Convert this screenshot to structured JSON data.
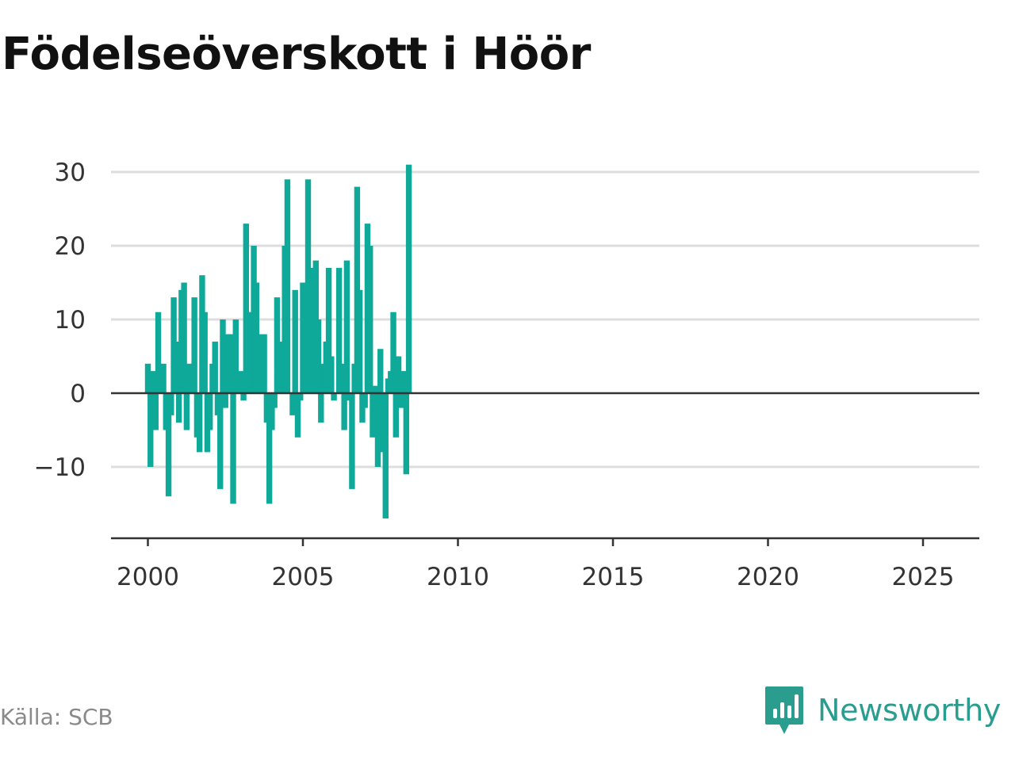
{
  "title": "Födelseöverskott i Höör",
  "source": "Källa: SCB",
  "brand": {
    "name": "Newsworthy",
    "icon": "newsworthy-logo-icon",
    "color": "#2a9d8f"
  },
  "colors": {
    "bar": "#0fa99a",
    "grid": "#dddddd",
    "axis": "#333333",
    "tick_text": "#333333"
  },
  "chart_data": {
    "type": "bar",
    "title": "Födelseöverskott i Höör",
    "xlabel": "",
    "ylabel": "",
    "x_unit": "year, monthly bars",
    "x_start": 2000.0,
    "x_step": 0.08333,
    "xlim": [
      1999.4,
      2025.6
    ],
    "ylim": [
      -19.5,
      32
    ],
    "yticks": [
      30,
      20,
      10,
      0,
      -10
    ],
    "ytick_labels": [
      "30",
      "20",
      "10",
      "0",
      "−10"
    ],
    "xticks": [
      2000,
      2005,
      2010,
      2015,
      2020,
      2025
    ],
    "xtick_labels": [
      "2000",
      "2005",
      "2010",
      "2015",
      "2020",
      "2025"
    ],
    "grid": true,
    "values": [
      4,
      -10,
      3,
      -5,
      11,
      null,
      4,
      -5,
      -14,
      -3,
      13,
      7,
      -4,
      14,
      15,
      -5,
      4,
      1,
      13,
      -6,
      -8,
      16,
      11,
      -8,
      -5,
      4,
      7,
      -3,
      -13,
      10,
      -2,
      8,
      8,
      -15,
      10,
      null,
      3,
      -1,
      23,
      11,
      7,
      20,
      15,
      8,
      1,
      8,
      -4,
      -15,
      -5,
      -2,
      13,
      3,
      7,
      20,
      29,
      null,
      -3,
      14,
      -6,
      -1,
      15,
      2,
      29,
      6,
      17,
      18,
      10,
      -4,
      4,
      7,
      17,
      5,
      -1,
      null,
      17,
      4,
      -5,
      18,
      -1,
      -13,
      4,
      28,
      14,
      -4,
      -2,
      23,
      20,
      -6,
      1,
      -10,
      6,
      -8,
      -17,
      2,
      3,
      11,
      -6,
      5,
      -2,
      3,
      -11,
      31
    ]
  }
}
